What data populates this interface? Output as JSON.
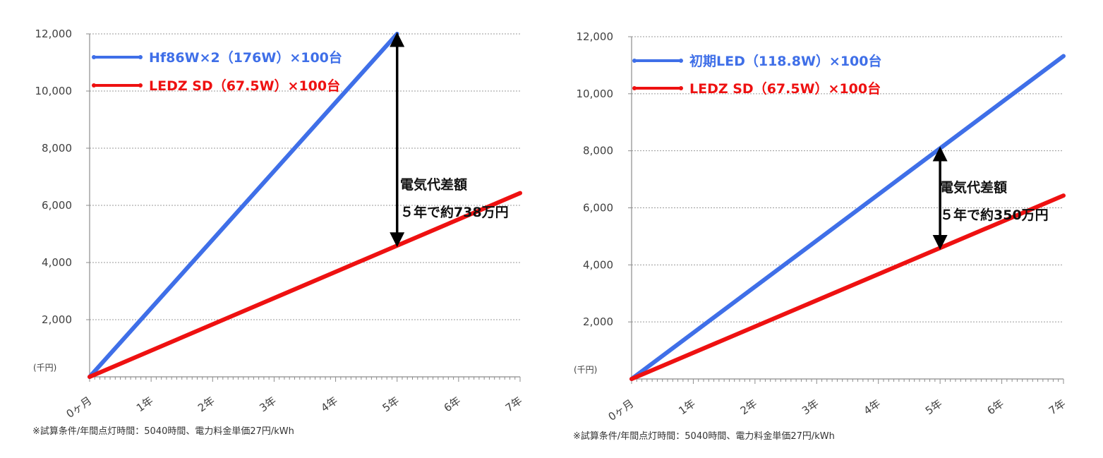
{
  "chart_data": [
    {
      "type": "line",
      "unit_label": "(千円)",
      "xlabel": "",
      "ylabel": "",
      "categories": [
        "0ヶ月",
        "1年",
        "2年",
        "3年",
        "4年",
        "5年",
        "6年",
        "7年"
      ],
      "y_ticks": [
        "12,000",
        "10,000",
        "8,000",
        "6,000",
        "4,000",
        "2,000"
      ],
      "ylim": [
        0,
        12000
      ],
      "xlim": [
        0,
        7
      ],
      "grid": true,
      "legend_position": "top-left",
      "series": [
        {
          "name": "Hf86W×2（176W）×100台",
          "color": "#3f6fe8",
          "x": [
            0,
            5
          ],
          "y": [
            0,
            12000
          ]
        },
        {
          "name": "LEDZ SD（67.5W）×100台",
          "color": "#ee1111",
          "x": [
            0,
            7
          ],
          "y": [
            0,
            6430
          ]
        }
      ],
      "annotation": {
        "line1": "電気代差額",
        "line2": "５年で約738万円",
        "x": 5,
        "y_from": 12000,
        "y_to": 4600
      },
      "note": "※試算条件/年間点灯時間：5040時間、電力料金単価27円/kWh"
    },
    {
      "type": "line",
      "unit_label": "(千円)",
      "xlabel": "",
      "ylabel": "",
      "categories": [
        "0ヶ月",
        "1年",
        "2年",
        "3年",
        "4年",
        "5年",
        "6年",
        "7年"
      ],
      "y_ticks": [
        "12,000",
        "10,000",
        "8,000",
        "6,000",
        "4,000",
        "2,000"
      ],
      "ylim": [
        0,
        12000
      ],
      "xlim": [
        0,
        7
      ],
      "grid": true,
      "legend_position": "top-left",
      "series": [
        {
          "name": "初期LED（118.8W）×100台",
          "color": "#3f6fe8",
          "x": [
            0,
            7
          ],
          "y": [
            0,
            11320
          ]
        },
        {
          "name": "LEDZ SD（67.5W）×100台",
          "color": "#ee1111",
          "x": [
            0,
            7
          ],
          "y": [
            0,
            6430
          ]
        }
      ],
      "annotation": {
        "line1": "電気代差額",
        "line2": "５年で約350万円",
        "x": 5,
        "y_from": 8090,
        "y_to": 4590
      },
      "note": "※試算条件/年間点灯時間：5040時間、電力料金単価27円/kWh"
    }
  ]
}
